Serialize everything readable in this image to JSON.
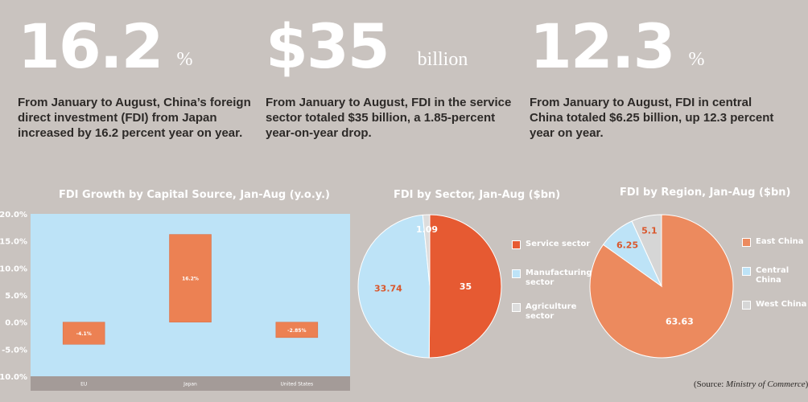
{
  "stats": [
    {
      "value": "16.2",
      "unit": "%",
      "text": "From January to August, China’s foreign direct investment (FDI) from Japan increased by 16.2 percent year on year."
    },
    {
      "value": "$35",
      "unit": "billion",
      "text": "From January to August, FDI in the service sector totaled $35 billion, a 1.85-percent year-on-year drop."
    },
    {
      "value": "12.3",
      "unit": "%",
      "text": "From January to August, FDI in central China totaled $6.25 billion, up 12.3 percent year on year."
    }
  ],
  "source": {
    "prefix": "(Source: ",
    "name": "Ministry of Commerce",
    "suffix": ")"
  },
  "chart_data": [
    {
      "type": "bar",
      "title": "FDI Growth by Capital Source, Jan-Aug (y.o.y.)",
      "categories": [
        "EU",
        "Japan",
        "United States"
      ],
      "values": [
        -4.1,
        16.2,
        -2.85
      ],
      "data_labels": [
        "-4.1%",
        "16.2%",
        "-2.85%"
      ],
      "yticks": [
        "20.0%",
        "15.0%",
        "10.0%",
        "5.0%",
        "0.0%",
        "-5.0%",
        "-10.0%"
      ],
      "ylim": [
        -10,
        20
      ],
      "grid": false,
      "colors": {
        "bar": "#ec8153",
        "plot_bg": "#bde3f7",
        "axis_band": "#a49b98"
      }
    },
    {
      "type": "pie",
      "title": "FDI by Sector, Jan-Aug ($bn)",
      "labels": [
        "Service sector",
        "Manufacturing sector",
        "Agriculture sector"
      ],
      "values": [
        35,
        33.74,
        1.09
      ],
      "data_labels": [
        "35",
        "33.74",
        "1.09"
      ],
      "colors": [
        "#e65a32",
        "#bde3f7",
        "#dcdcdc"
      ],
      "legend": "right"
    },
    {
      "type": "pie",
      "title": "FDI by Region, Jan-Aug ($bn)",
      "labels": [
        "East China",
        "Central China",
        "West China"
      ],
      "values": [
        63.63,
        6.25,
        5.1
      ],
      "data_labels": [
        "63.63",
        "6.25",
        "5.1"
      ],
      "colors": [
        "#ec8a5e",
        "#bde3f7",
        "#d6d6d6"
      ],
      "legend": "right"
    }
  ]
}
